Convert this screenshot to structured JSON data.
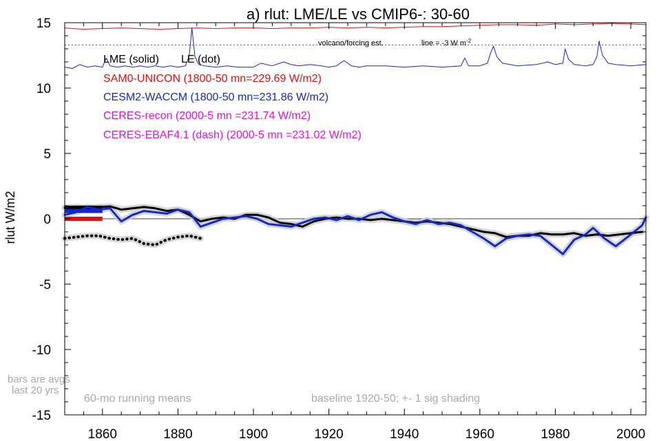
{
  "chart_data": {
    "type": "line",
    "title": "a) rlut: LME/LE vs CMIP6-: 30-60",
    "ylabel": "rlut W/m2",
    "xlabel": "",
    "xlim": [
      1850,
      2004
    ],
    "ylim": [
      -15,
      15
    ],
    "xticks": [
      1860,
      1880,
      1900,
      1920,
      1940,
      1960,
      1980,
      2000
    ],
    "yticks": [
      15,
      10,
      5,
      0,
      -5,
      -10,
      -15
    ],
    "grid": false,
    "zero_line": 0,
    "legend": {
      "header_solid": "LME (solid)",
      "header_dot": "LE (dot)",
      "entries": [
        {
          "text": "SAM0-UNICON (1800-50 mn=229.69 W/m2)",
          "color": "#e01010"
        },
        {
          "text": "CESM2-WACCM (1800-50 mn=231.86 W/m2)",
          "color": "#1428c8"
        },
        {
          "text": "CERES-recon (2000-5 mn =231.74 W/m2)",
          "color": "#e010e0"
        },
        {
          "text": "CERES-EBAF4.1 (dash) (2000-5 mn =231.02 W/m2)",
          "color": "#e010e0"
        }
      ]
    },
    "volcano_label": "volcano/forcing est.",
    "volcano_line_label": "line = -3 W m",
    "volcano_line_label_sup": "-2",
    "volcano_line_y": 13.3,
    "annotations": {
      "bars_note_1": "bars are avgs",
      "bars_note_2": "last 20 yrs",
      "running_means": "60-mo running means",
      "baseline": "baseline 1920-50; +- 1 sig shading"
    },
    "series": [
      {
        "name": "SAM0-UNICON forcing",
        "color": "#e01010",
        "x": [
          1850,
          1855,
          1860,
          1865,
          1870,
          1875,
          1880,
          1885,
          1890,
          1895,
          1900,
          1905,
          1910,
          1915,
          1920,
          1925,
          1930,
          1935,
          1940,
          1945,
          1950,
          1955,
          1960,
          1965,
          1970,
          1975,
          1980,
          1985,
          1990,
          1995,
          2000,
          2004
        ],
        "y": [
          14.6,
          14.5,
          14.55,
          14.6,
          14.55,
          14.5,
          14.55,
          14.6,
          14.55,
          14.6,
          14.6,
          14.55,
          14.6,
          14.6,
          14.65,
          14.6,
          14.65,
          14.6,
          14.65,
          14.7,
          14.7,
          14.75,
          14.8,
          14.85,
          14.85,
          14.8,
          14.9,
          14.85,
          14.9,
          14.95,
          14.9,
          14.85
        ]
      },
      {
        "name": "CESM2-WACCM forcing",
        "color": "#1428c8",
        "x": [
          1850,
          1852,
          1854,
          1856,
          1858,
          1860,
          1861,
          1862,
          1864,
          1866,
          1868,
          1870,
          1872,
          1874,
          1876,
          1878,
          1880,
          1882,
          1883,
          1883.7,
          1884.5,
          1885.5,
          1887,
          1890,
          1893,
          1896,
          1900,
          1902,
          1905,
          1908,
          1910,
          1912,
          1915,
          1918,
          1920,
          1922,
          1924,
          1926,
          1928,
          1930,
          1935,
          1940,
          1945,
          1950,
          1955,
          1956,
          1957,
          1960,
          1962,
          1963,
          1963.6,
          1964.5,
          1966,
          1968,
          1970,
          1975,
          1978,
          1980,
          1982,
          1982.6,
          1983.5,
          1985,
          1988,
          1990,
          1991,
          1991.6,
          1992.5,
          1994,
          1996,
          2000,
          2004
        ],
        "y": [
          11.6,
          11.5,
          11.8,
          11.6,
          11.7,
          11.6,
          12.3,
          11.7,
          11.6,
          11.7,
          11.6,
          11.7,
          11.6,
          11.7,
          11.6,
          11.7,
          11.6,
          11.7,
          12.5,
          14.6,
          12.4,
          11.8,
          11.7,
          11.6,
          11.7,
          11.6,
          11.6,
          11.9,
          11.7,
          12.0,
          11.8,
          11.7,
          11.8,
          11.7,
          11.6,
          11.7,
          12.1,
          11.7,
          11.6,
          11.7,
          11.7,
          11.6,
          11.7,
          11.6,
          11.7,
          12.3,
          11.7,
          11.7,
          11.9,
          12.8,
          13.2,
          12.4,
          11.9,
          11.8,
          11.7,
          11.8,
          12.0,
          11.8,
          11.9,
          13.0,
          12.2,
          11.8,
          11.7,
          11.8,
          12.4,
          13.6,
          12.5,
          11.9,
          11.8,
          11.7,
          11.8
        ]
      },
      {
        "name": "LME SAM0-UNICON",
        "color": "#000000",
        "x": [
          1850,
          1853,
          1856,
          1859,
          1862,
          1865,
          1868,
          1871,
          1874,
          1877,
          1880,
          1883,
          1886,
          1889,
          1892,
          1895,
          1898,
          1901,
          1904,
          1907,
          1910,
          1913,
          1916,
          1919,
          1922,
          1925,
          1928,
          1931,
          1934,
          1937,
          1940,
          1943,
          1946,
          1949,
          1952,
          1955,
          1958,
          1961,
          1964,
          1967,
          1970,
          1973,
          1976,
          1979,
          1982,
          1985,
          1988,
          1991,
          1994,
          1997,
          2000,
          2003
        ],
        "y": [
          0.85,
          0.9,
          0.85,
          0.9,
          0.95,
          0.7,
          0.8,
          0.9,
          0.8,
          0.6,
          0.7,
          0.3,
          -0.2,
          0.0,
          0.1,
          0.0,
          0.3,
          0.3,
          0.1,
          -0.3,
          -0.4,
          -0.6,
          -0.2,
          0.0,
          0.1,
          0.0,
          0.0,
          -0.1,
          0.0,
          -0.1,
          -0.2,
          -0.3,
          -0.2,
          -0.3,
          -0.4,
          -0.6,
          -0.8,
          -1.0,
          -1.1,
          -1.4,
          -1.3,
          -1.3,
          -1.1,
          -1.2,
          -1.2,
          -1.1,
          -1.3,
          -1.2,
          -1.3,
          -1.2,
          -1.1,
          -1.0
        ]
      },
      {
        "name": "LE CESM2-WACCM",
        "color": "#1428c8",
        "x": [
          1850,
          1853,
          1856,
          1859,
          1862,
          1865,
          1868,
          1871,
          1874,
          1877,
          1880,
          1883,
          1886,
          1889,
          1892,
          1895,
          1898,
          1901,
          1904,
          1907,
          1910,
          1913,
          1916,
          1919,
          1922,
          1925,
          1928,
          1931,
          1934,
          1937,
          1940,
          1943,
          1946,
          1949,
          1952,
          1955,
          1958,
          1961,
          1964,
          1967,
          1970,
          1973,
          1976,
          1979,
          1982,
          1985,
          1988,
          1990,
          1993,
          1996,
          2000,
          2003,
          2004
        ],
        "y": [
          0.3,
          0.5,
          0.9,
          0.7,
          0.8,
          -0.2,
          0.3,
          0.6,
          0.5,
          0.4,
          0.7,
          0.5,
          -0.6,
          -0.3,
          0.0,
          0.1,
          0.2,
          0.0,
          -0.4,
          -0.5,
          -0.6,
          -0.3,
          0.0,
          0.1,
          -0.1,
          0.2,
          -0.1,
          0.3,
          0.5,
          0.1,
          -0.2,
          -0.4,
          -0.1,
          -0.4,
          -0.3,
          -0.5,
          -1.0,
          -1.5,
          -2.1,
          -1.5,
          -1.3,
          -1.2,
          -1.3,
          -2.0,
          -2.7,
          -1.6,
          -1.2,
          -0.7,
          -1.5,
          -2.1,
          -1.2,
          -0.5,
          0.1
        ]
      },
      {
        "name": "LE SAM0-UNICON (dot)",
        "color": "#000000",
        "dotted": true,
        "x": [
          1850,
          1853,
          1856,
          1859,
          1862,
          1865,
          1868,
          1871,
          1874,
          1877,
          1880,
          1883,
          1886
        ],
        "y": [
          -1.5,
          -1.4,
          -1.3,
          -1.3,
          -1.5,
          -1.6,
          -1.5,
          -1.9,
          -2.0,
          -1.6,
          -1.4,
          -1.3,
          -1.5
        ]
      }
    ],
    "bars": [
      {
        "name": "LME SAM0-UNICON bar",
        "color": "#000000",
        "x0": 1850,
        "x1": 1860,
        "y": 0.85
      },
      {
        "name": "LE CESM2-WACCM bar",
        "color": "#1428c8",
        "x0": 1850,
        "x1": 1860,
        "y": 0.6
      },
      {
        "name": "SAM0-UNICON bar",
        "color": "#e01010",
        "x0": 1850,
        "x1": 1860,
        "y": 0.0
      }
    ]
  }
}
